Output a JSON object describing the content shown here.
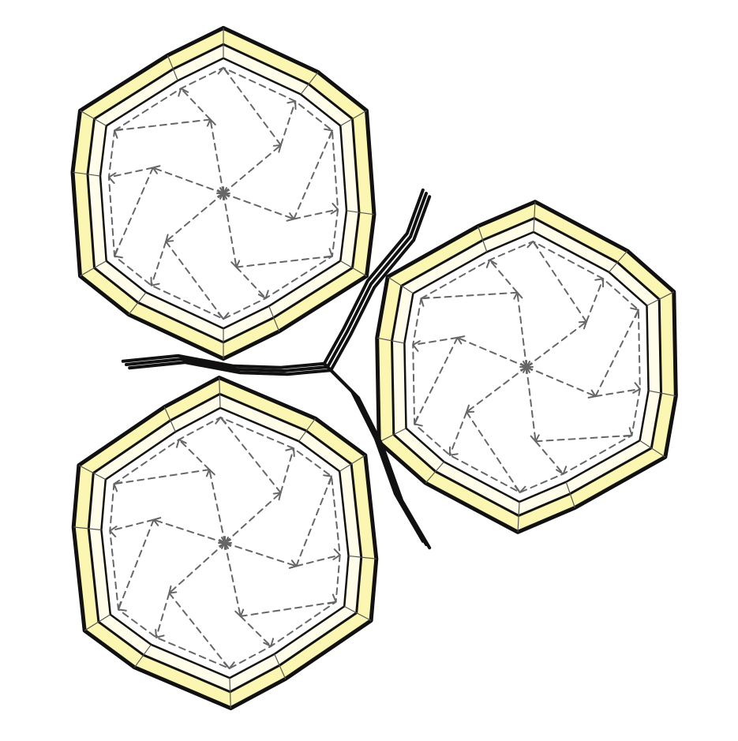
{
  "colors": {
    "outer_band": "#FBF7B3",
    "middle_band": "#FFFDE9",
    "interior": "#FFFFFF",
    "outline": "#111111",
    "fold_lines": "#666666"
  },
  "tiles": [
    {
      "id": "top-left"
    },
    {
      "id": "right"
    },
    {
      "id": "bottom-left"
    }
  ]
}
